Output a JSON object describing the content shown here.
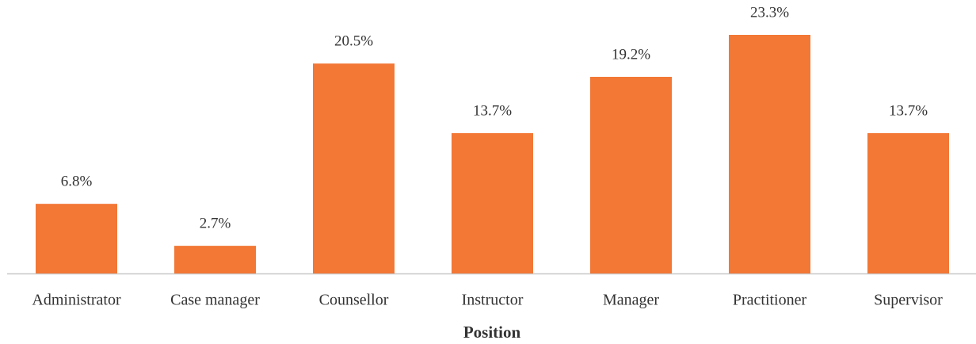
{
  "chart_data": {
    "type": "bar",
    "x_label": "Position",
    "categories": [
      "Administrator",
      "Case manager",
      "Counsellor",
      "Instructor",
      "Manager",
      "Practitioner",
      "Supervisor"
    ],
    "values": [
      6.8,
      2.7,
      20.5,
      13.7,
      19.2,
      23.3,
      13.7
    ],
    "value_labels": [
      "6.8%",
      "2.7%",
      "20.5%",
      "13.7%",
      "19.2%",
      "23.3%",
      "13.7%"
    ],
    "color": "#f37735"
  }
}
